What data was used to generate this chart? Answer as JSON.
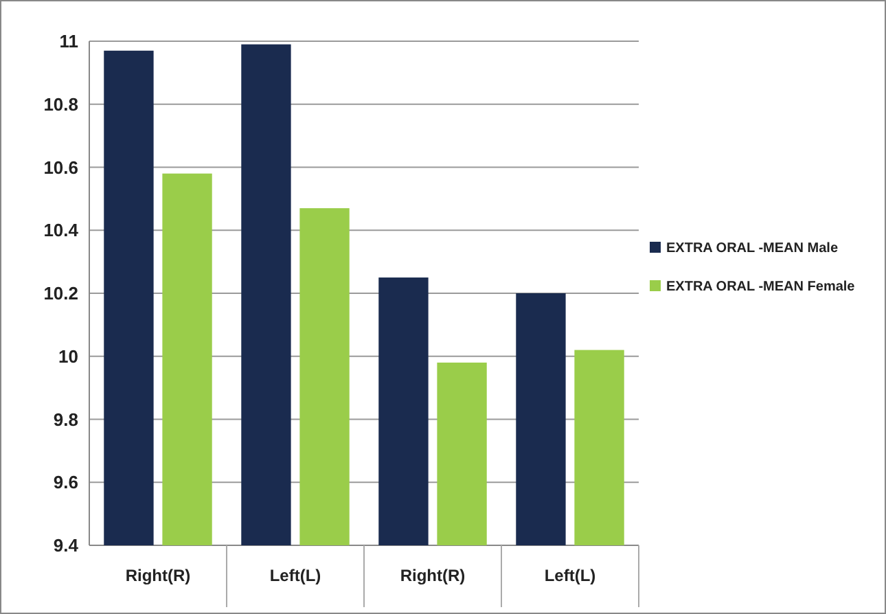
{
  "chart_data": {
    "type": "bar",
    "categories": [
      "Right(R)",
      "Left(L)",
      "Right(R)",
      "Left(L)"
    ],
    "series": [
      {
        "name": "EXTRA ORAL -MEAN Male",
        "color": "#1a2b4f",
        "values": [
          10.97,
          10.99,
          10.25,
          10.2
        ]
      },
      {
        "name": "EXTRA ORAL -MEAN Female",
        "color": "#9acd4a",
        "values": [
          10.58,
          10.47,
          9.98,
          10.02
        ]
      }
    ],
    "ylim": [
      9.4,
      11
    ],
    "yticks": [
      9.4,
      9.6,
      9.8,
      10,
      10.2,
      10.4,
      10.6,
      10.8,
      11
    ],
    "grid": "y",
    "legend": "right"
  }
}
